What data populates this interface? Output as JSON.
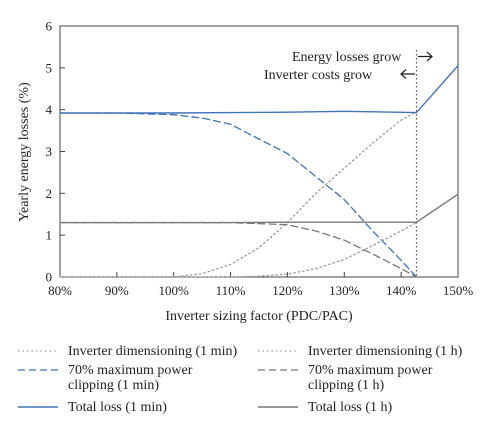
{
  "chart_data": {
    "type": "line",
    "xlabel": "Inverter sizing factor (PDC/PAC)",
    "ylabel": "Yearly energy losses (%)",
    "xlim": [
      80,
      150
    ],
    "ylim": [
      0,
      6
    ],
    "x_ticks": [
      "80%",
      "90%",
      "100%",
      "110%",
      "120%",
      "130%",
      "140%",
      "150%"
    ],
    "y_ticks": [
      "0",
      "1",
      "2",
      "3",
      "4",
      "5",
      "6"
    ],
    "grid": false,
    "annotations": {
      "energy_losses": "Energy losses grow",
      "inverter_costs": "Inverter costs grow",
      "vline_x": 142.7
    },
    "series": [
      {
        "name": "Inverter dimensioning (1 min)",
        "color": "#9a9a9a",
        "style": "dotted",
        "x": [
          80,
          90,
          100,
          105,
          110,
          115,
          120,
          125,
          130,
          135,
          140,
          142.7
        ],
        "y": [
          0,
          0,
          0,
          0.08,
          0.3,
          0.7,
          1.3,
          2.0,
          2.6,
          3.2,
          3.75,
          3.95
        ]
      },
      {
        "name": "70% maximum power clipping (1 min)",
        "color": "#3f74b8",
        "style": "dashed",
        "x": [
          80,
          90,
          100,
          105,
          110,
          115,
          120,
          125,
          130,
          135,
          140,
          142.7
        ],
        "y": [
          3.92,
          3.92,
          3.88,
          3.8,
          3.65,
          3.3,
          2.95,
          2.4,
          1.85,
          1.1,
          0.4,
          0
        ]
      },
      {
        "name": "Total loss (1 min)",
        "color": "#3f74b8",
        "style": "solid",
        "x": [
          80,
          90,
          100,
          110,
          120,
          130,
          142.7,
          150
        ],
        "y": [
          3.92,
          3.92,
          3.92,
          3.93,
          3.94,
          3.96,
          3.93,
          5.05
        ]
      },
      {
        "name": "Inverter dimensioning (1 h)",
        "color": "#9a9a9a",
        "style": "dotted",
        "x": [
          80,
          110,
          115,
          120,
          125,
          130,
          135,
          140,
          142.7
        ],
        "y": [
          0,
          0,
          0.02,
          0.07,
          0.2,
          0.42,
          0.75,
          1.1,
          1.3
        ]
      },
      {
        "name": "70% maximum power clipping (1 h)",
        "color": "#777777",
        "style": "dashed",
        "x": [
          80,
          90,
          100,
          110,
          120,
          125,
          130,
          135,
          140,
          142.7
        ],
        "y": [
          1.3,
          1.3,
          1.3,
          1.3,
          1.25,
          1.1,
          0.88,
          0.55,
          0.2,
          0
        ]
      },
      {
        "name": "Total loss (1 h)",
        "color": "#777777",
        "style": "solid",
        "x": [
          80,
          90,
          100,
          110,
          120,
          130,
          142.7,
          150
        ],
        "y": [
          1.3,
          1.3,
          1.3,
          1.3,
          1.31,
          1.31,
          1.31,
          1.98
        ]
      }
    ]
  },
  "legend": [
    {
      "label": "Inverter dimensioning (1 min)",
      "color": "#9a9a9a",
      "style": "dotted"
    },
    {
      "label": "Inverter dimensioning (1 h)",
      "color": "#9a9a9a",
      "style": "dotted"
    },
    {
      "label": "70% maximum power clipping (1 min)",
      "color": "#3f74b8",
      "style": "dashed"
    },
    {
      "label": "70% maximum power clipping (1 h)",
      "color": "#777777",
      "style": "dashed"
    },
    {
      "label": "Total loss (1 min)",
      "color": "#3f74b8",
      "style": "solid"
    },
    {
      "label": "Total loss (1 h)",
      "color": "#777777",
      "style": "solid"
    }
  ]
}
